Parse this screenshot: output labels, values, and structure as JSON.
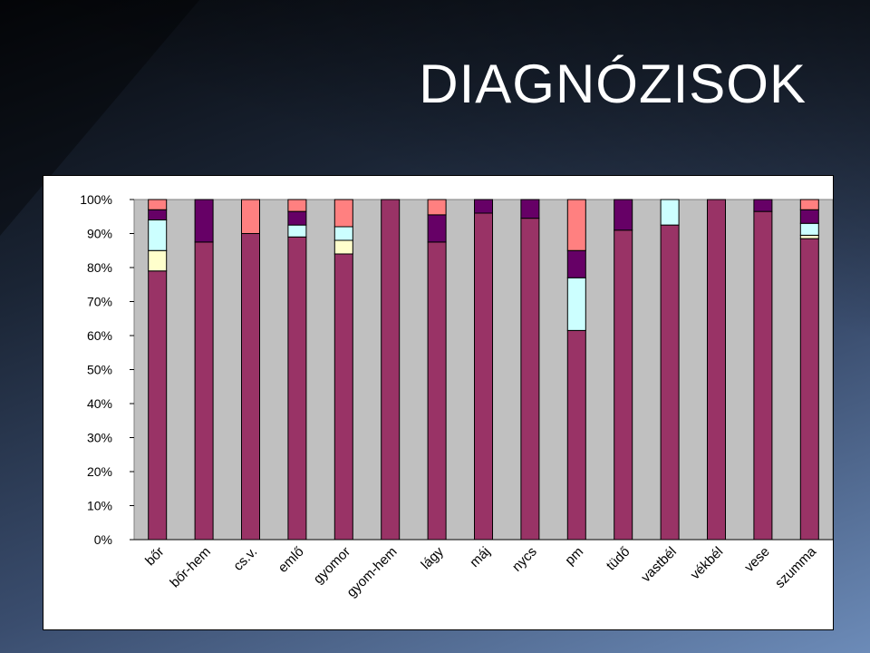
{
  "title": "DIAGNÓZISOK",
  "chart_data": {
    "type": "bar",
    "stacked": true,
    "normalized": true,
    "title": "",
    "xlabel": "",
    "ylabel": "",
    "ylim": [
      0,
      100
    ],
    "y_ticks": [
      "0%",
      "10%",
      "20%",
      "30%",
      "40%",
      "50%",
      "60%",
      "70%",
      "80%",
      "90%",
      "100%"
    ],
    "grid": false,
    "legend": "none",
    "categories": [
      "bőr",
      "bőr-hem",
      "cs.v.",
      "emlő",
      "gyomor",
      "gyom-hem",
      "lágy",
      "máj",
      "nycs",
      "pm",
      "tüdő",
      "vastbél",
      "vékbél",
      "vese",
      "szumma"
    ],
    "series": [
      {
        "color": "#993366",
        "values": [
          79,
          87.5,
          90,
          89,
          84,
          100,
          87.5,
          96,
          94.5,
          61.5,
          91,
          92.5,
          100,
          96.5,
          88.5
        ]
      },
      {
        "color": "#ffffcc",
        "values": [
          6,
          0,
          0,
          0,
          4,
          0,
          0,
          0,
          0,
          0,
          0,
          0,
          0,
          0,
          1
        ]
      },
      {
        "color": "#ccffff",
        "values": [
          9,
          0,
          0,
          3.5,
          4,
          0,
          0,
          0,
          0,
          15.5,
          0,
          7.5,
          0,
          0,
          3.5
        ]
      },
      {
        "color": "#660066",
        "values": [
          3,
          12.5,
          0,
          4,
          0,
          0,
          8,
          4,
          5.5,
          8,
          9,
          0,
          0,
          3.5,
          4
        ]
      },
      {
        "color": "#ff8080",
        "values": [
          3,
          0,
          10,
          3.5,
          8,
          0,
          4.5,
          0,
          0,
          15,
          0,
          0,
          0,
          0,
          3
        ]
      }
    ]
  }
}
